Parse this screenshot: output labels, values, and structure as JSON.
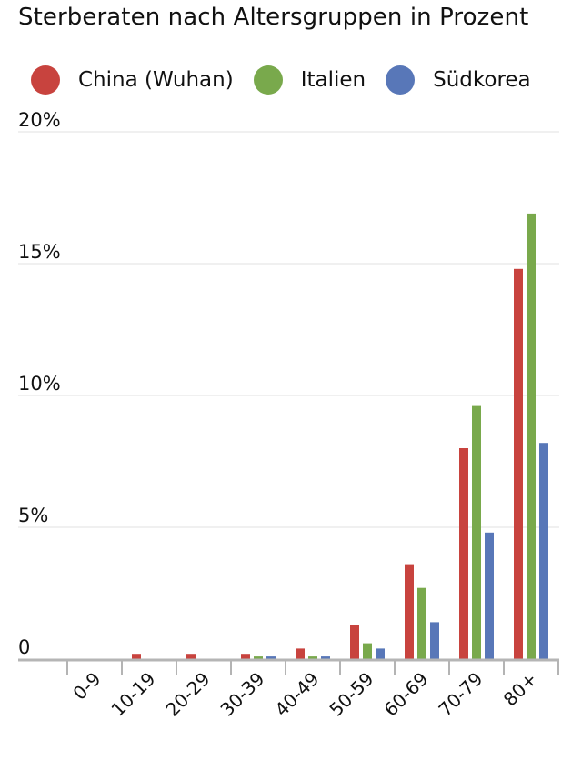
{
  "chart_data": {
    "type": "bar",
    "title": "Sterberaten nach Altersgruppen in Prozent",
    "xlabel": "",
    "ylabel": "",
    "ylim": [
      0,
      20
    ],
    "yticks": [
      {
        "value": 0,
        "label": "0"
      },
      {
        "value": 5,
        "label": "5%"
      },
      {
        "value": 10,
        "label": "10%"
      },
      {
        "value": 15,
        "label": "15%"
      },
      {
        "value": 20,
        "label": "20%"
      }
    ],
    "grid": true,
    "legend_position": "top",
    "categories": [
      "0-9",
      "10-19",
      "20-29",
      "30-39",
      "40-49",
      "50-59",
      "60-69",
      "70-79",
      "80+"
    ],
    "series": [
      {
        "name": "China (Wuhan)",
        "color": "#c8433e",
        "values": [
          0,
          0.2,
          0.2,
          0.2,
          0.4,
          1.3,
          3.6,
          8.0,
          14.8
        ]
      },
      {
        "name": "Italien",
        "color": "#79a94c",
        "values": [
          0,
          0,
          0,
          0.1,
          0.1,
          0.6,
          2.7,
          9.6,
          16.9
        ]
      },
      {
        "name": "Südkorea",
        "color": "#5877b8",
        "values": [
          0,
          0,
          0,
          0.1,
          0.1,
          0.4,
          1.4,
          4.8,
          8.2
        ]
      }
    ]
  }
}
